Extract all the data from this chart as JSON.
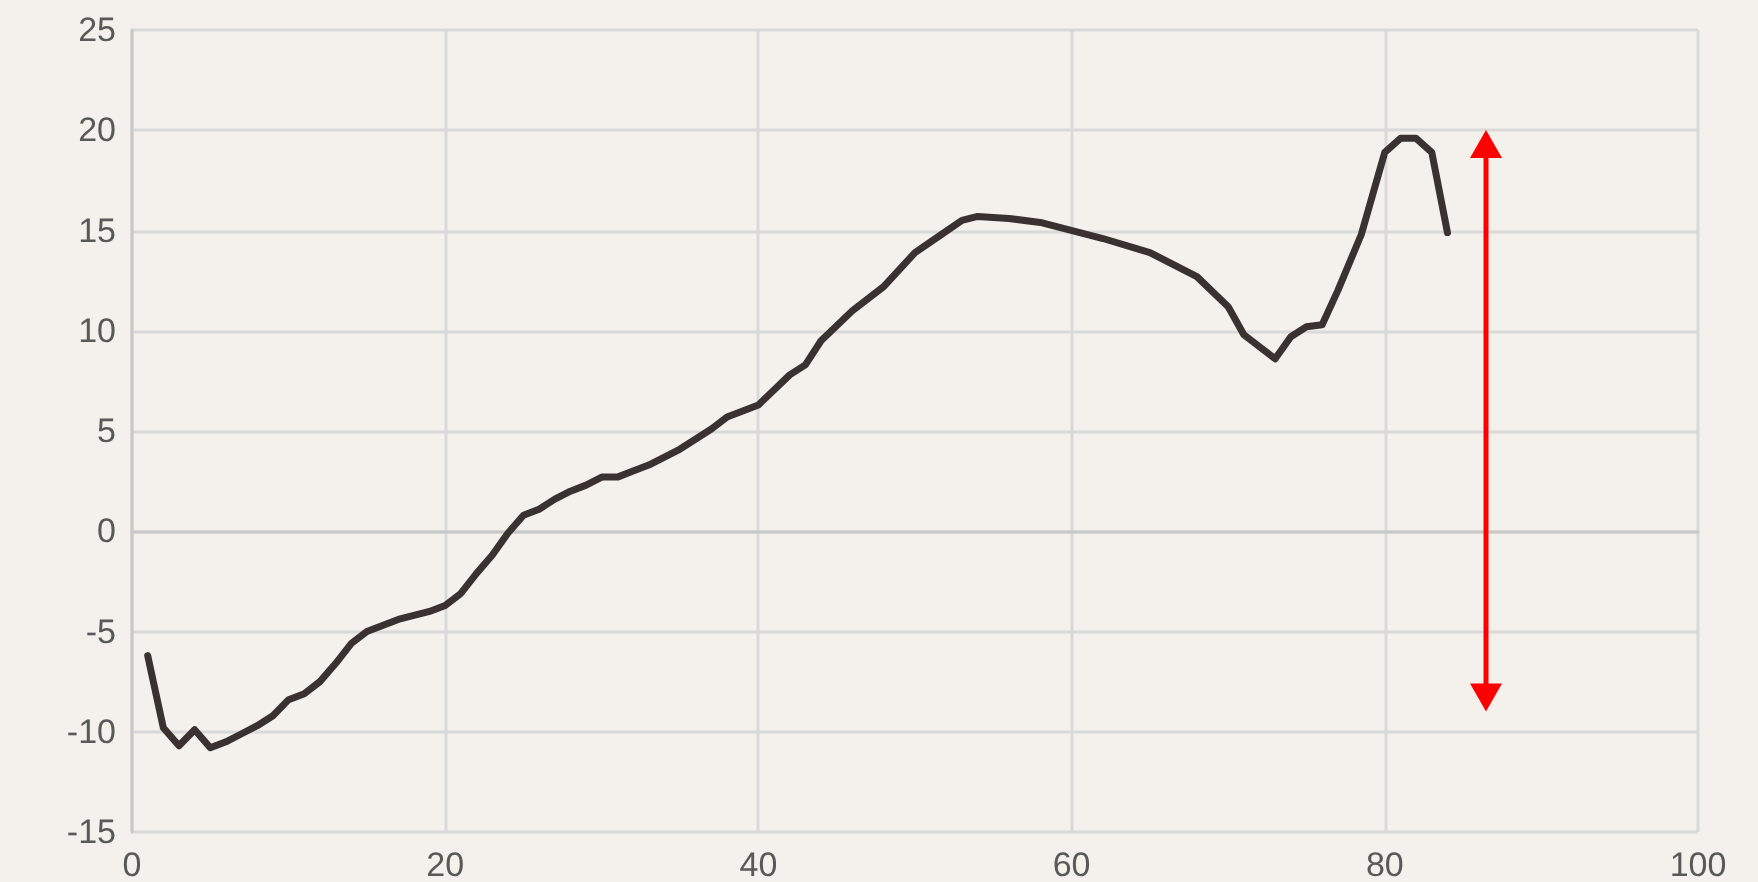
{
  "chart_data": {
    "type": "line",
    "xlim": [
      0,
      100
    ],
    "xticks": [
      0,
      20,
      40,
      60,
      80,
      100
    ],
    "ylim": [
      -15,
      25
    ],
    "yticks": [
      -15,
      -10,
      -5,
      0,
      5,
      10,
      15,
      20,
      25
    ],
    "grid": true,
    "marker": "none",
    "line_style": "solid",
    "series": [
      {
        "color": "#3a3230",
        "x": [
          1,
          2,
          3,
          4,
          5,
          6,
          7,
          8,
          9,
          10,
          11,
          12,
          13,
          14,
          15,
          16,
          17,
          18,
          19,
          20,
          21,
          22,
          23,
          24,
          25,
          26,
          27,
          28,
          29,
          30,
          31,
          32,
          33,
          34,
          35,
          36,
          37,
          38,
          39,
          40,
          42,
          43,
          44,
          46,
          48,
          50,
          51.5,
          53,
          54,
          56,
          58,
          62,
          65,
          68,
          70,
          71,
          73,
          74,
          75,
          76,
          77,
          78.5,
          80,
          81,
          82,
          83,
          84
        ],
        "values": [
          -6.2,
          -9.8,
          -10.7,
          -9.9,
          -10.8,
          -10.5,
          -10.1,
          -9.7,
          -9.2,
          -8.4,
          -8.1,
          -7.5,
          -6.6,
          -5.6,
          -5.0,
          -4.7,
          -4.4,
          -4.2,
          -4.0,
          -3.7,
          -3.1,
          -2.1,
          -1.2,
          -0.1,
          0.8,
          1.1,
          1.6,
          2.0,
          2.3,
          2.7,
          2.7,
          3.0,
          3.3,
          3.7,
          4.1,
          4.6,
          5.1,
          5.7,
          6.0,
          6.3,
          7.8,
          8.3,
          9.5,
          11.0,
          12.2,
          13.9,
          14.7,
          15.5,
          15.7,
          15.6,
          15.4,
          14.6,
          13.9,
          12.7,
          11.2,
          9.8,
          8.6,
          9.7,
          10.2,
          10.3,
          12.0,
          14.8,
          18.9,
          19.6,
          19.6,
          18.9,
          14.9
        ]
      }
    ]
  }
}
